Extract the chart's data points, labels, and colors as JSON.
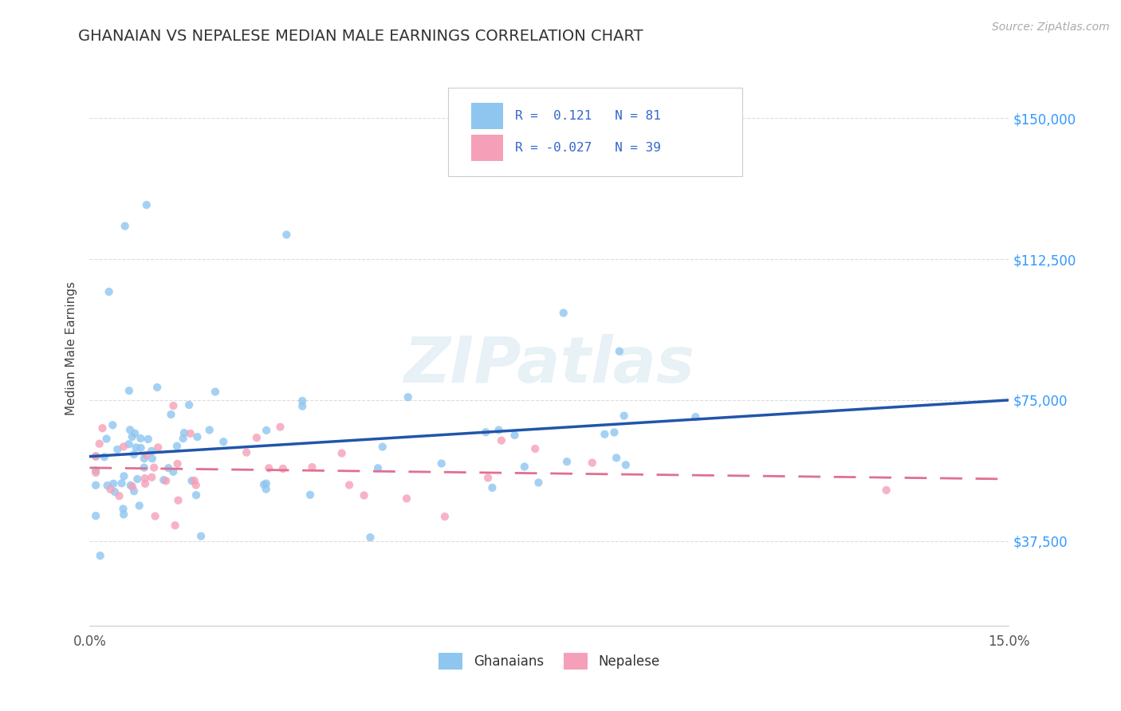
{
  "title": "GHANAIAN VS NEPALESE MEDIAN MALE EARNINGS CORRELATION CHART",
  "source_text": "Source: ZipAtlas.com",
  "ylabel": "Median Male Earnings",
  "ytick_labels": [
    "$37,500",
    "$75,000",
    "$112,500",
    "$150,000"
  ],
  "ytick_values": [
    37500,
    75000,
    112500,
    150000
  ],
  "ylim": [
    15000,
    162500
  ],
  "xlim": [
    0.0,
    0.15
  ],
  "watermark_text": "ZIPatlas",
  "ghanaian_color": "#8ec6f0",
  "nepalese_color": "#f5a0b8",
  "ghanaian_line_color": "#2255aa",
  "nepalese_line_color": "#e07090",
  "R_ghanaian": 0.121,
  "N_ghanaian": 81,
  "R_nepalese": -0.027,
  "N_nepalese": 39,
  "title_fontsize": 14,
  "tick_fontsize": 12,
  "background_color": "#ffffff",
  "grid_color": "#dddddd",
  "source_color": "#aaaaaa",
  "right_label_color": "#3399ff"
}
